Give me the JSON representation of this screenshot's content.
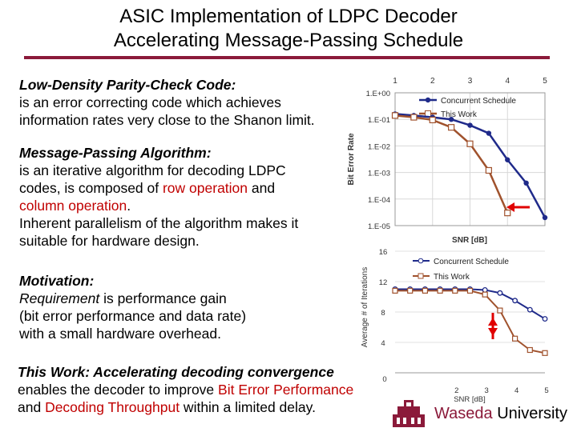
{
  "title": {
    "line1": "ASIC Implementation of LDPC Decoder",
    "line2": "Accelerating Message-Passing Schedule"
  },
  "ldpc": {
    "heading": "Low-Density Parity-Check Code:",
    "line1": "is an error correcting code which achieves",
    "line2": "information rates very close to the Shanon limit."
  },
  "mpa": {
    "heading": "Message-Passing Algorithm:",
    "line1": "is an iterative algorithm for decoding LDPC",
    "line2a": "codes, is composed of ",
    "line2b": "row operation",
    "line2c": " and",
    "line3a": "column operation",
    "line3b": ".",
    "line4": "Inherent parallelism of the algorithm makes it",
    "line5": "suitable for hardware design."
  },
  "motivation": {
    "heading": "Motivation:",
    "line1a": "Requirement",
    "line1b": " is performance gain",
    "line2": "(bit error performance and data rate)",
    "line3": "with a small hardware overhead."
  },
  "thiswork": {
    "heading": "This Work: Accelerating decoding convergence",
    "line1a": "enables the decoder to improve ",
    "line1b": "Bit Error Performance",
    "line2a": "and ",
    "line2b": "Decoding Throughput",
    "line2c": " within a limited delay."
  },
  "footer": {
    "org": "Waseda",
    "org2": " University"
  },
  "colors": {
    "accent_red": "#c00000",
    "rule": "#8b1a3a",
    "series_concurrent": "#1f2a8a",
    "series_thiswork": "#a0522d",
    "arrow": "#e00000"
  },
  "chart_data": [
    {
      "type": "line",
      "x": [
        1,
        1.5,
        2,
        2.5,
        3,
        3.5,
        4,
        4.5,
        5
      ],
      "xlabel": "SNR [dB]",
      "ylabel": "Bit Error Rate",
      "xlim": [
        1,
        5
      ],
      "ylog": true,
      "ylim": [
        1e-05,
        1
      ],
      "x_ticks": [
        "1",
        "2",
        "3",
        "4",
        "5"
      ],
      "y_ticks": [
        "1.E+00",
        "1.E-01",
        "1.E-02",
        "1.E-03",
        "1.E-04",
        "1.E-05"
      ],
      "y_tick_values": [
        1,
        0.1,
        0.01,
        0.001,
        0.0001,
        1e-05
      ],
      "legend": "top-right",
      "series": [
        {
          "name": "Concurrent Schedule",
          "x": [
            1,
            1.5,
            2,
            2.5,
            3,
            3.5,
            4,
            4.5,
            5
          ],
          "values": [
            0.16,
            0.14,
            0.12,
            0.1,
            0.06,
            0.03,
            0.003,
            0.0004,
            2e-05
          ]
        },
        {
          "name": "This Work",
          "x": [
            1,
            1.5,
            2,
            2.5,
            3,
            3.5,
            4
          ],
          "values": [
            0.14,
            0.12,
            0.095,
            0.05,
            0.012,
            0.0012,
            3e-05
          ]
        }
      ]
    },
    {
      "type": "line",
      "x": [
        0,
        0.5,
        1,
        1.5,
        2,
        2.5,
        3,
        3.5,
        4,
        4.5,
        5
      ],
      "xlabel": "SNR [dB]",
      "ylabel": "Average # of Iterations",
      "xlim": [
        0,
        5
      ],
      "ylim": [
        0,
        16
      ],
      "x_ticks": [
        "2",
        "3",
        "4",
        "5"
      ],
      "x_tick_values": [
        2,
        3,
        4,
        5
      ],
      "x_origin_label": "0",
      "y_ticks": [
        "16",
        "12",
        "8",
        "4"
      ],
      "y_tick_values": [
        16,
        12,
        8,
        4
      ],
      "legend": "top-right",
      "series": [
        {
          "name": "Concurrent Schedule",
          "x": [
            0,
            0.5,
            1,
            1.5,
            2,
            2.5,
            3,
            3.5,
            4,
            4.5,
            5
          ],
          "values": [
            11,
            11,
            11,
            11,
            11,
            11,
            10.9,
            10.5,
            9.5,
            8.3,
            7.1
          ]
        },
        {
          "name": "This Work",
          "x": [
            0,
            0.5,
            1,
            1.5,
            2,
            2.5,
            3,
            3.5,
            4,
            4.5,
            5
          ],
          "values": [
            10.8,
            10.8,
            10.8,
            10.8,
            10.8,
            10.8,
            10.3,
            8.2,
            4.5,
            3.0,
            2.6
          ]
        }
      ]
    }
  ]
}
